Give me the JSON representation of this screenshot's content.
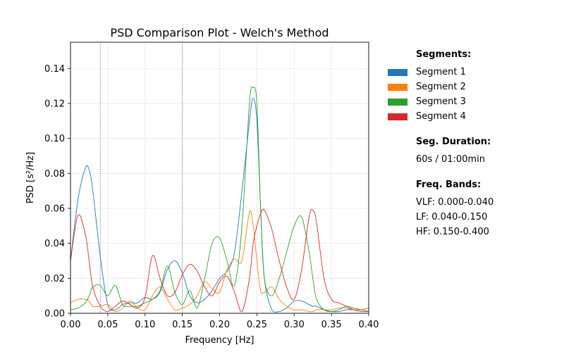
{
  "chart_data": {
    "type": "line",
    "title": "PSD Comparison Plot - Welch's Method",
    "xlabel": "Frequency [Hz]",
    "ylabel": "PSD [s²/Hz]",
    "xlim": [
      0,
      0.4
    ],
    "ylim": [
      0,
      0.155
    ],
    "xticks": [
      "0.00",
      "0.05",
      "0.10",
      "0.15",
      "0.20",
      "0.25",
      "0.30",
      "0.35",
      "0.40"
    ],
    "yticks": [
      "0.00",
      "0.02",
      "0.04",
      "0.06",
      "0.08",
      "0.10",
      "0.12",
      "0.14"
    ],
    "grid": true,
    "vlines": [
      0.04,
      0.15
    ],
    "legend_position": "right",
    "x": [
      0,
      0.01,
      0.02,
      0.025,
      0.03,
      0.04,
      0.05,
      0.06,
      0.07,
      0.08,
      0.09,
      0.1,
      0.11,
      0.12,
      0.13,
      0.14,
      0.15,
      0.16,
      0.17,
      0.18,
      0.19,
      0.2,
      0.21,
      0.22,
      0.23,
      0.24,
      0.245,
      0.25,
      0.255,
      0.26,
      0.27,
      0.28,
      0.29,
      0.3,
      0.31,
      0.32,
      0.325,
      0.33,
      0.34,
      0.35,
      0.36,
      0.37,
      0.38,
      0.39,
      0.4
    ],
    "series": [
      {
        "name": "Segment 1",
        "color": "#1f77b4",
        "values": [
          0.03,
          0.065,
          0.083,
          0.082,
          0.07,
          0.032,
          0.005,
          0.002,
          0.005,
          0.006,
          0.006,
          0.009,
          0.008,
          0.012,
          0.025,
          0.03,
          0.023,
          0.01,
          0.006,
          0.008,
          0.013,
          0.02,
          0.024,
          0.035,
          0.07,
          0.11,
          0.123,
          0.11,
          0.06,
          0.02,
          0.002,
          0.001,
          0.003,
          0.007,
          0.007,
          0.005,
          0.004,
          0.004,
          0.002,
          0.001,
          0.001,
          0.002,
          0.002,
          0.002,
          0.003
        ]
      },
      {
        "name": "Segment 2",
        "color": "#ff7f0e",
        "values": [
          0.006,
          0.008,
          0.008,
          0.007,
          0.004,
          0.004,
          0.005,
          0.001,
          0.003,
          0.007,
          0.003,
          0.002,
          0.01,
          0.015,
          0.008,
          0.002,
          0.003,
          0.005,
          0.01,
          0.018,
          0.014,
          0.012,
          0.025,
          0.031,
          0.03,
          0.058,
          0.05,
          0.03,
          0.013,
          0.012,
          0.015,
          0.008,
          0.004,
          0.002,
          0.002,
          0.001,
          0.001,
          0.002,
          0.002,
          0.002,
          0.003,
          0.003,
          0.002,
          0.002,
          0.003
        ]
      },
      {
        "name": "Segment 3",
        "color": "#2ca02c",
        "values": [
          0.002,
          0.003,
          0.006,
          0.01,
          0.015,
          0.016,
          0.01,
          0.016,
          0.005,
          0.004,
          0.004,
          0.006,
          0.008,
          0.013,
          0.027,
          0.012,
          0.005,
          0.013,
          0.003,
          0.02,
          0.04,
          0.043,
          0.03,
          0.016,
          0.05,
          0.12,
          0.129,
          0.12,
          0.06,
          0.02,
          0.01,
          0.02,
          0.035,
          0.05,
          0.055,
          0.035,
          0.02,
          0.008,
          0.002,
          0.001,
          0.002,
          0.004,
          0.003,
          0.002,
          0.001
        ]
      },
      {
        "name": "Segment 4",
        "color": "#d62728",
        "values": [
          0.03,
          0.056,
          0.045,
          0.03,
          0.015,
          0.004,
          0.001,
          0.004,
          0.007,
          0.005,
          0.003,
          0.009,
          0.033,
          0.02,
          0.01,
          0.012,
          0.022,
          0.028,
          0.024,
          0.015,
          0.01,
          0.018,
          0.021,
          0.012,
          0.001,
          0.02,
          0.04,
          0.05,
          0.057,
          0.059,
          0.048,
          0.03,
          0.015,
          0.008,
          0.025,
          0.055,
          0.059,
          0.052,
          0.02,
          0.008,
          0.006,
          0.004,
          0.002,
          0.001,
          0.001
        ]
      }
    ]
  },
  "legend": {
    "segments_heading": "Segments:",
    "duration_heading": "Seg. Duration:",
    "duration_value": "60s / 01:00min",
    "bands_heading": "Freq. Bands:",
    "bands": [
      "VLF: 0.000-0.040",
      "LF: 0.040-0.150",
      "HF: 0.150-0.400"
    ]
  }
}
